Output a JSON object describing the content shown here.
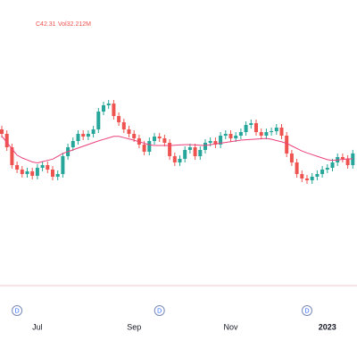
{
  "chart_data": {
    "type": "candlestick",
    "legend_texts": [
      "C42.31",
      "Vol32.212M"
    ],
    "categories": [
      null,
      null,
      null,
      null,
      null,
      null,
      null,
      "Jul",
      null,
      null,
      null,
      null,
      null,
      null,
      null,
      null,
      null,
      null,
      null,
      null,
      null,
      null,
      null,
      null,
      null,
      null,
      "Sep",
      null,
      null,
      null,
      null,
      null,
      null,
      null,
      null,
      null,
      null,
      null,
      null,
      null,
      null,
      null,
      null,
      null,
      null,
      "Nov",
      null,
      null,
      null,
      null,
      null,
      null,
      null,
      null,
      null,
      null,
      null,
      null,
      null,
      null,
      null,
      null,
      null,
      null,
      "2023",
      null,
      null,
      null,
      null,
      null
    ],
    "open": [
      45.0,
      44.5,
      43.0,
      41.0,
      40.5,
      40.0,
      40.3,
      39.8,
      40.7,
      41.0,
      40.5,
      39.7,
      40.0,
      42.0,
      43.0,
      43.7,
      44.5,
      44.2,
      44.5,
      45.0,
      47.0,
      47.7,
      47.9,
      46.5,
      45.8,
      45.0,
      44.5,
      44.0,
      43.3,
      42.5,
      43.7,
      44.2,
      44.0,
      43.5,
      42.0,
      41.3,
      41.7,
      42.7,
      43.0,
      42.0,
      42.7,
      43.5,
      43.7,
      43.3,
      44.3,
      44.5,
      44.0,
      44.3,
      44.7,
      45.5,
      45.7,
      44.7,
      44.3,
      44.7,
      44.8,
      45.2,
      44.3,
      42.3,
      41.3,
      40.0,
      39.5,
      39.3,
      39.7,
      40.0,
      40.5,
      40.7,
      41.3,
      41.9,
      41.7,
      41.0
    ],
    "high": [
      45.4,
      44.9,
      43.4,
      41.4,
      40.9,
      40.7,
      40.7,
      41.1,
      41.4,
      41.4,
      40.9,
      40.4,
      42.4,
      43.4,
      44.1,
      44.9,
      44.9,
      44.9,
      45.4,
      47.4,
      48.1,
      48.3,
      48.3,
      46.9,
      46.2,
      45.4,
      44.9,
      44.4,
      43.7,
      44.1,
      44.6,
      44.6,
      44.4,
      43.9,
      42.4,
      42.1,
      43.1,
      43.4,
      43.4,
      43.1,
      43.9,
      44.1,
      44.1,
      44.7,
      44.9,
      44.9,
      44.7,
      45.1,
      45.9,
      46.1,
      46.1,
      45.1,
      45.1,
      45.2,
      45.6,
      45.6,
      44.7,
      42.7,
      41.7,
      40.4,
      39.9,
      40.1,
      40.4,
      40.9,
      41.1,
      41.7,
      42.3,
      42.3,
      42.1,
      42.71
    ],
    "low": [
      44.1,
      42.6,
      40.6,
      40.1,
      39.6,
      39.6,
      39.4,
      39.4,
      40.3,
      40.1,
      39.3,
      39.3,
      39.6,
      41.6,
      42.6,
      43.3,
      43.8,
      43.8,
      44.1,
      44.6,
      46.6,
      47.3,
      46.1,
      45.4,
      44.6,
      44.1,
      43.6,
      42.9,
      42.1,
      42.1,
      43.3,
      43.6,
      43.1,
      41.6,
      40.9,
      40.9,
      41.3,
      42.3,
      41.6,
      41.6,
      42.3,
      43.1,
      42.9,
      42.9,
      43.9,
      43.6,
      43.6,
      43.9,
      44.3,
      45.1,
      44.3,
      43.9,
      43.9,
      44.3,
      44.4,
      43.9,
      41.9,
      40.9,
      39.6,
      39.1,
      38.9,
      38.9,
      39.3,
      39.6,
      40.1,
      40.3,
      40.9,
      41.3,
      40.6,
      40.6
    ],
    "close": [
      44.5,
      43.0,
      41.0,
      40.5,
      40.0,
      40.3,
      39.8,
      40.7,
      41.0,
      40.5,
      39.7,
      40.0,
      42.0,
      43.0,
      43.7,
      44.5,
      44.2,
      44.5,
      45.0,
      47.0,
      47.7,
      47.9,
      46.5,
      45.8,
      45.0,
      44.5,
      44.0,
      43.3,
      42.5,
      43.7,
      44.2,
      44.0,
      43.5,
      42.0,
      41.3,
      41.7,
      42.7,
      43.0,
      42.0,
      42.7,
      43.5,
      43.7,
      43.3,
      44.3,
      44.5,
      44.0,
      44.3,
      44.7,
      45.5,
      45.7,
      44.7,
      44.3,
      44.7,
      44.8,
      45.2,
      44.3,
      42.3,
      41.3,
      40.0,
      39.5,
      39.3,
      39.7,
      40.0,
      40.5,
      40.7,
      41.3,
      41.9,
      41.7,
      41.0,
      42.31
    ],
    "moving_average": {
      "color": "#ec407a",
      "values": [
        44.25,
        43.54,
        42.82,
        42.11,
        41.81,
        41.58,
        41.35,
        41.25,
        41.39,
        41.53,
        41.67,
        41.98,
        42.31,
        42.51,
        42.71,
        42.91,
        43.11,
        43.31,
        43.51,
        43.71,
        43.88,
        44.05,
        44.22,
        44.22,
        44.08,
        43.94,
        43.79,
        43.62,
        43.45,
        43.28,
        43.2,
        43.2,
        43.2,
        43.2,
        43.23,
        43.26,
        43.29,
        43.29,
        43.26,
        43.23,
        43.2,
        43.29,
        43.37,
        43.46,
        43.54,
        43.63,
        43.71,
        43.8,
        43.84,
        43.88,
        43.91,
        43.95,
        43.99,
        43.9,
        43.75,
        43.61,
        43.44,
        43.15,
        42.87,
        42.58,
        42.37,
        42.18,
        41.99,
        41.8,
        41.61,
        41.52,
        41.58,
        41.64,
        41.7,
        41.7
      ]
    },
    "up_color": "#26a69a",
    "down_color": "#ef5350",
    "events": [
      {
        "index": 3,
        "label": "D"
      },
      {
        "index": 31,
        "label": "D"
      },
      {
        "index": 60,
        "label": "D"
      }
    ],
    "ylim": [
      27.5,
      59.5
    ]
  }
}
